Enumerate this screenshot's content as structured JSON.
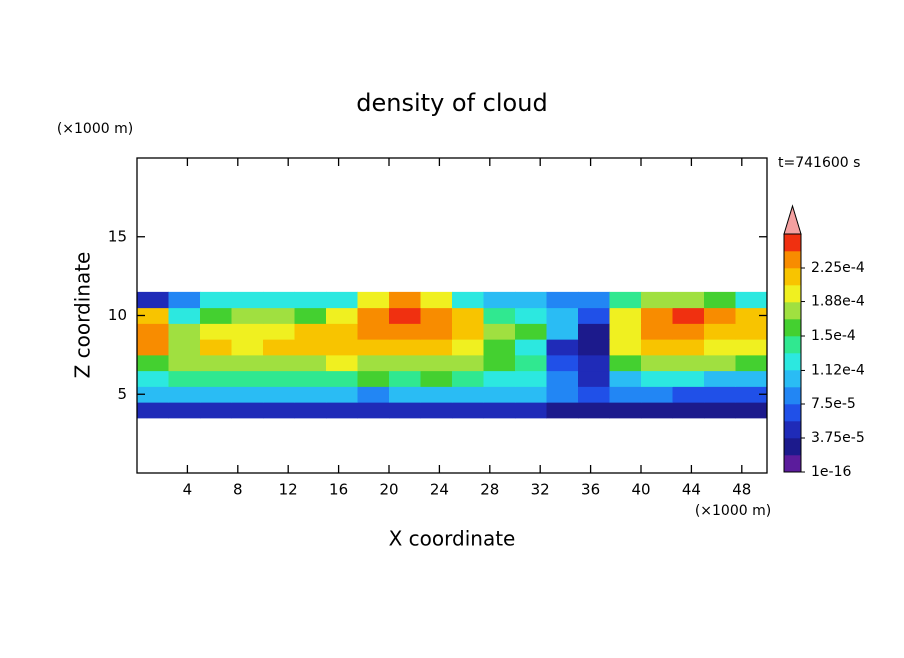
{
  "chart_data": {
    "type": "contour",
    "title": "density of cloud",
    "x_label": "X coordinate",
    "y_label": "Z coordinate",
    "x_unit": "(×1000 m)",
    "y_unit": "(×1000 m)",
    "annotation": "t=741600 s",
    "xlim": [
      0,
      50
    ],
    "ylim": [
      0,
      20
    ],
    "xticks": [
      4,
      8,
      12,
      16,
      20,
      24,
      28,
      32,
      36,
      40,
      44,
      48
    ],
    "yticks": [
      5,
      10,
      15
    ],
    "x": [
      1.25,
      3.75,
      6.25,
      8.75,
      11.25,
      13.75,
      16.25,
      18.75,
      21.25,
      23.75,
      26.25,
      28.75,
      31.25,
      33.75,
      36.25,
      38.75,
      41.25,
      43.75,
      46.25,
      48.75
    ],
    "z": [
      4,
      5,
      6,
      7,
      8,
      9,
      10,
      11
    ],
    "values": [
      [
        4e-05,
        4e-05,
        4e-05,
        4e-05,
        4e-05,
        4e-05,
        4e-05,
        4e-05,
        4e-05,
        4e-05,
        4e-05,
        4e-05,
        4e-05,
        3e-05,
        3e-05,
        3e-05,
        3e-05,
        2e-05,
        2e-05,
        2e-05
      ],
      [
        0.0001,
        0.0001,
        0.00011,
        0.00011,
        0.0001,
        0.00011,
        0.0001,
        8e-05,
        0.0001,
        0.0001,
        0.0001,
        0.0001,
        0.0001,
        9e-05,
        6e-05,
        9e-05,
        8e-05,
        7e-05,
        6e-05,
        6e-05
      ],
      [
        0.00013,
        0.00014,
        0.00014,
        0.00014,
        0.00014,
        0.00014,
        0.00014,
        0.00015,
        0.00014,
        0.00015,
        0.00014,
        0.00012,
        0.00012,
        9e-05,
        5e-05,
        0.00011,
        0.00012,
        0.00012,
        0.00011,
        0.0001
      ],
      [
        0.00016,
        0.00017,
        0.00018,
        0.00018,
        0.00017,
        0.00018,
        0.00019,
        0.00018,
        0.00017,
        0.00018,
        0.00017,
        0.00015,
        0.00014,
        6e-05,
        5e-05,
        0.00015,
        0.00018,
        0.00018,
        0.00017,
        0.00015
      ],
      [
        0.00023,
        0.00018,
        0.00021,
        0.0002,
        0.00021,
        0.00022,
        0.00022,
        0.00021,
        0.00021,
        0.00021,
        0.00019,
        0.00016,
        0.00013,
        4e-05,
        3e-05,
        0.00019,
        0.00021,
        0.00021,
        0.0002,
        0.0002
      ],
      [
        0.00024,
        0.00017,
        0.00019,
        0.0002,
        0.00019,
        0.00021,
        0.00022,
        0.00023,
        0.00024,
        0.00023,
        0.00022,
        0.00018,
        0.00015,
        0.0001,
        3e-05,
        0.0002,
        0.00023,
        0.00023,
        0.00022,
        0.00022
      ],
      [
        0.00022,
        0.00012,
        0.00015,
        0.00017,
        0.00018,
        0.00016,
        0.00019,
        0.00024,
        0.00025,
        0.00024,
        0.00021,
        0.00014,
        0.00013,
        0.0001,
        6e-05,
        0.00019,
        0.00024,
        0.00025,
        0.00023,
        0.00021
      ],
      [
        4e-05,
        9e-05,
        0.00012,
        0.00013,
        0.00013,
        0.00012,
        0.00013,
        0.0002,
        0.00023,
        0.0002,
        0.00012,
        0.00011,
        0.0001,
        8e-05,
        9e-05,
        0.00014,
        0.00018,
        0.00018,
        0.00016,
        0.00012
      ]
    ],
    "colorbar": {
      "lim": [
        0,
        0.0002625
      ],
      "ticks": [
        {
          "value": 1e-16,
          "label": "1e-16"
        },
        {
          "value": 3.75e-05,
          "label": "3.75e-5"
        },
        {
          "value": 7.5e-05,
          "label": "7.5e-5"
        },
        {
          "value": 0.000112,
          "label": "1.12e-4"
        },
        {
          "value": 0.00015,
          "label": "1.5e-4"
        },
        {
          "value": 0.000188,
          "label": "1.88e-4"
        },
        {
          "value": 0.000225,
          "label": "2.25e-4"
        }
      ],
      "colors": [
        "#5b1c9c",
        "#1c1a8c",
        "#1f2bb8",
        "#2050e8",
        "#2286f4",
        "#2abcf4",
        "#2ce8e0",
        "#30e890",
        "#44d030",
        "#a0e040",
        "#f0f020",
        "#f8c400",
        "#f88c00",
        "#f03010"
      ],
      "extend_color": "#f4a0a0"
    }
  }
}
